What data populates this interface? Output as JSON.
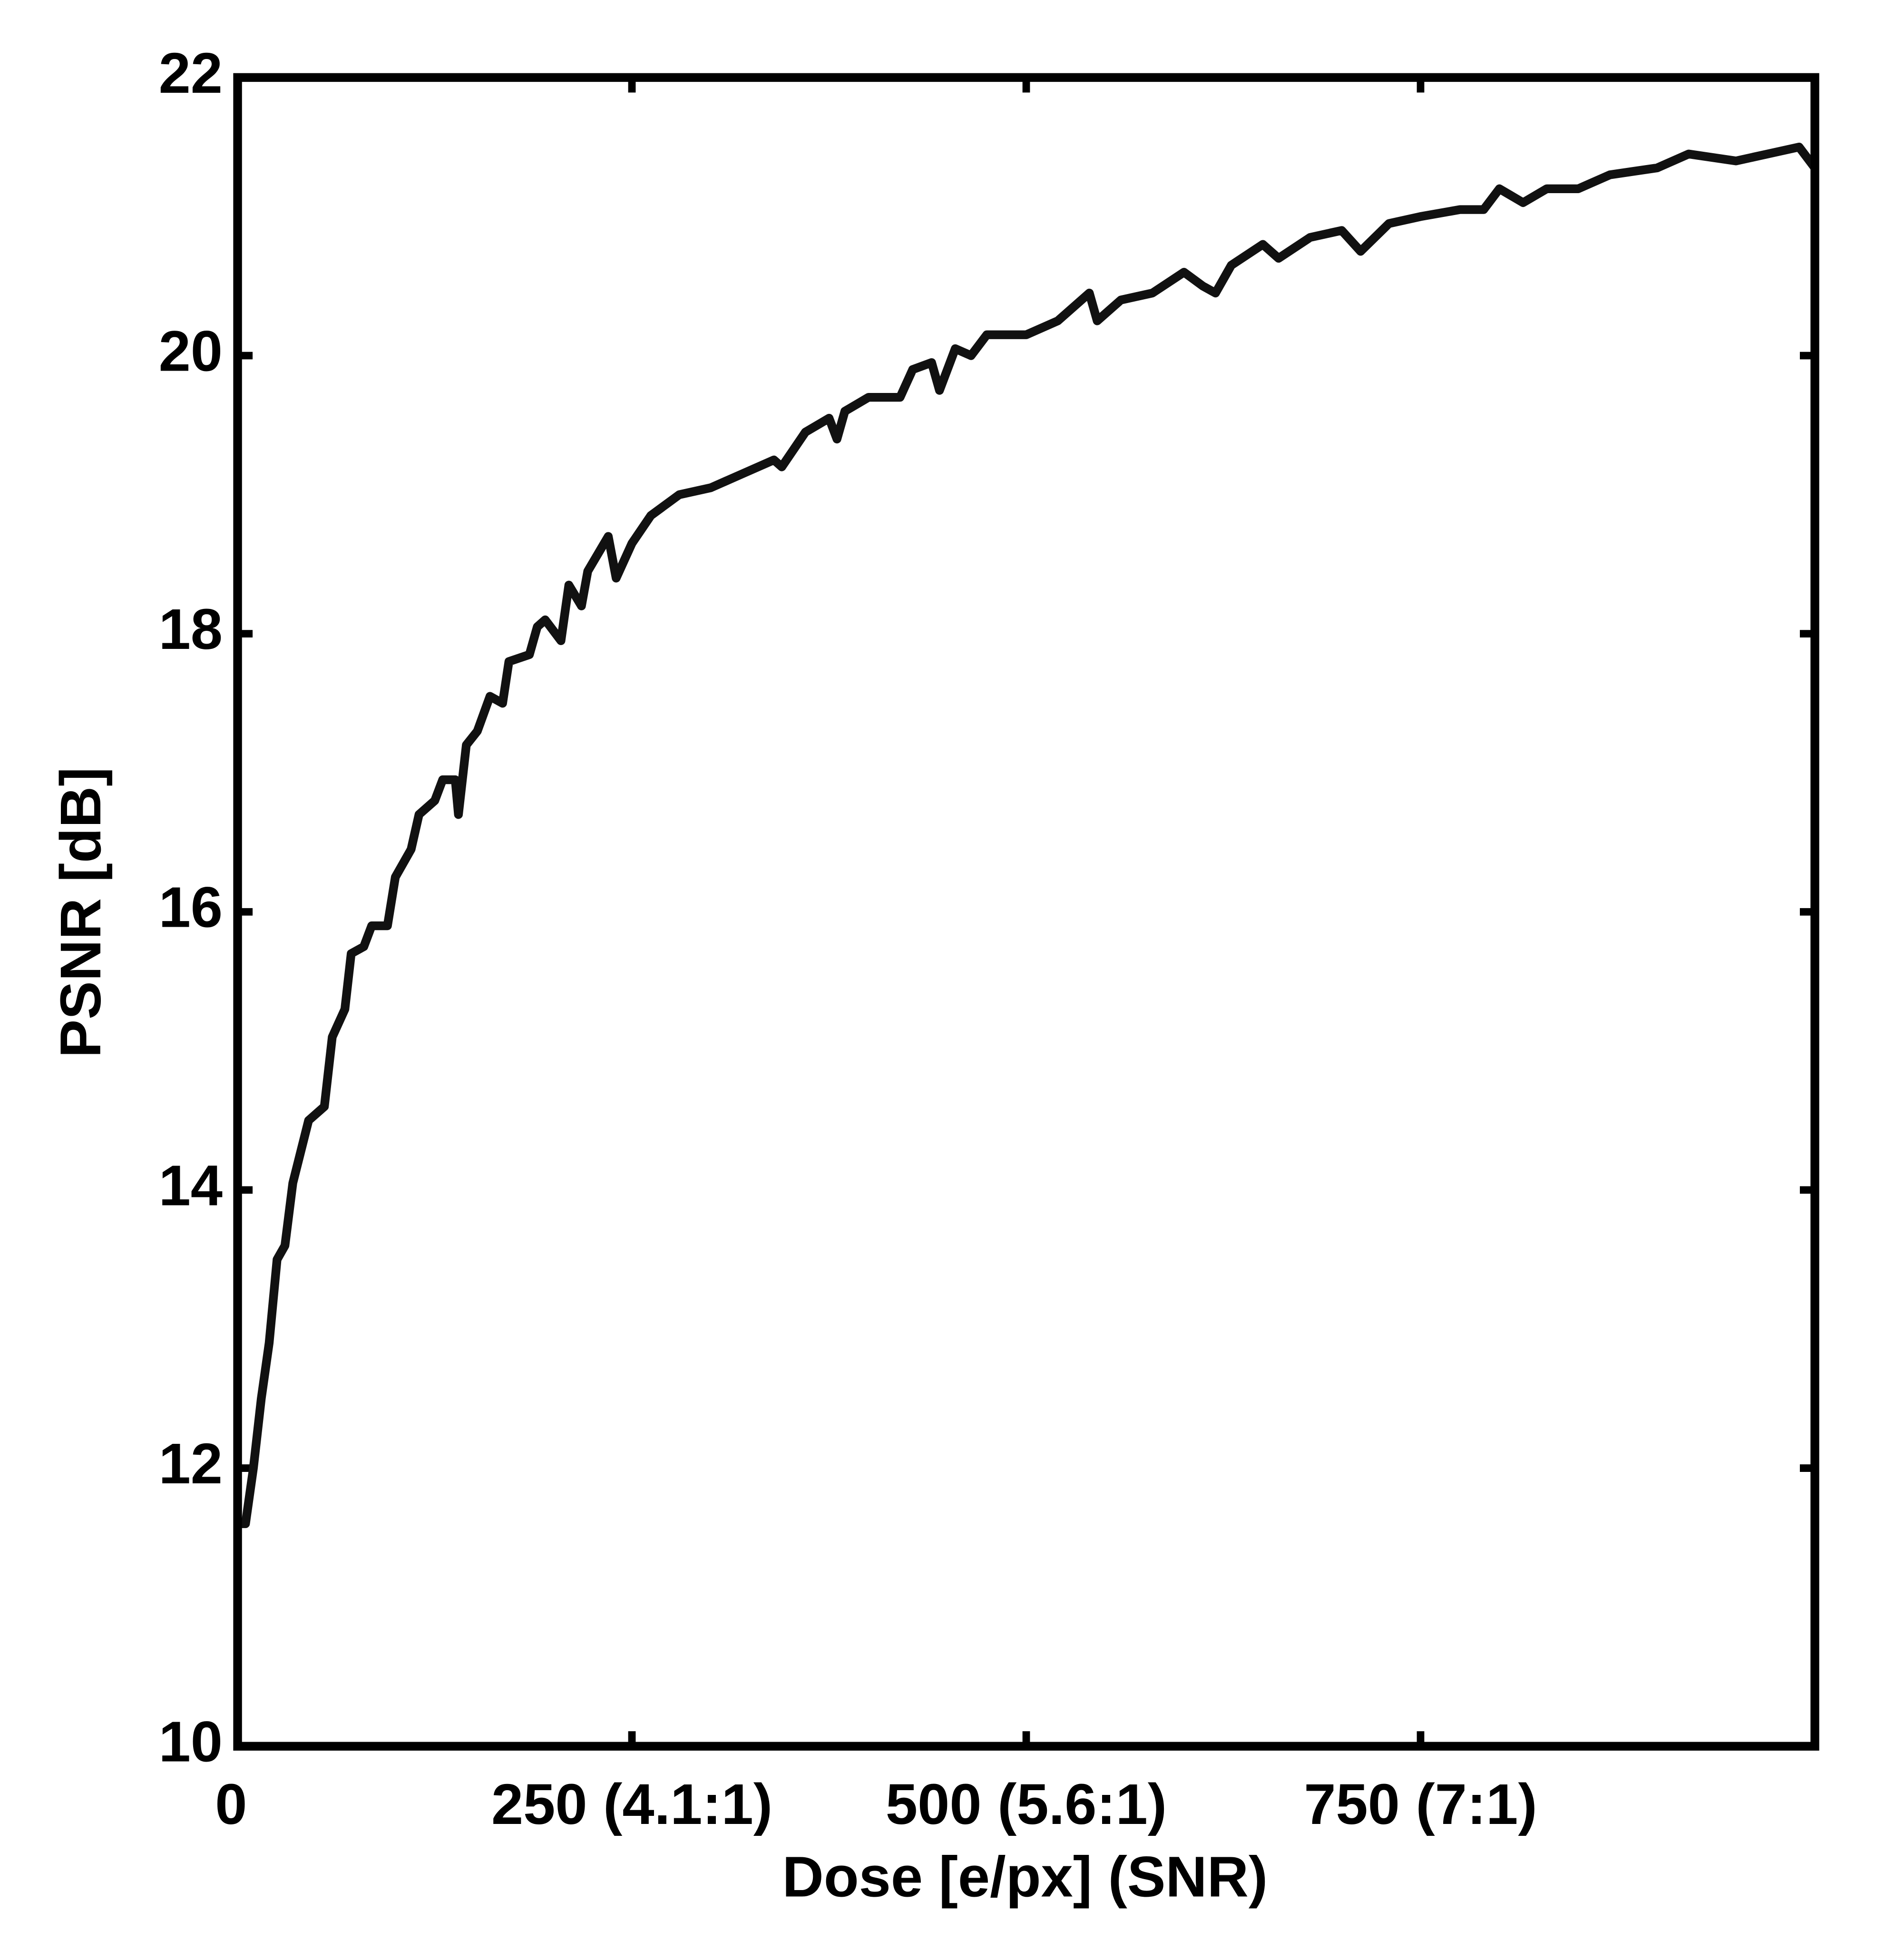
{
  "chart_data": {
    "type": "line",
    "xlabel": "Dose [e/px] (SNR)",
    "ylabel": "PSNR [dB]",
    "xlim": [
      0,
      1000
    ],
    "ylim": [
      10,
      22
    ],
    "xticks": [
      0,
      {
        "value": 250,
        "label": "250 (4.1:1)"
      },
      {
        "value": 500,
        "label": "500 (5.6:1)"
      },
      {
        "value": 750,
        "label": "750 (7:1)"
      }
    ],
    "yticks": [
      10,
      12,
      14,
      16,
      18,
      20,
      22
    ],
    "grid": false,
    "series": [
      {
        "color": "#111111",
        "x": [
          0,
          5,
          10,
          15,
          20,
          25,
          30,
          35,
          45,
          55,
          60,
          68,
          72,
          80,
          85,
          95,
          100,
          110,
          115,
          125,
          130,
          138,
          140,
          145,
          152,
          160,
          168,
          172,
          185,
          190,
          195,
          205,
          210,
          218,
          222,
          235,
          240,
          250,
          262,
          280,
          300,
          320,
          340,
          345,
          360,
          375,
          380,
          385,
          400,
          420,
          428,
          440,
          445,
          455,
          465,
          475,
          500,
          520,
          540,
          545,
          560,
          580,
          600,
          612,
          620,
          630,
          650,
          660,
          680,
          700,
          712,
          730,
          750,
          775,
          790,
          800,
          815,
          830,
          850,
          870,
          900,
          920,
          950,
          970,
          990,
          1000
        ],
        "values": [
          11.6,
          11.6,
          12.0,
          12.5,
          12.9,
          13.5,
          13.6,
          14.05,
          14.5,
          14.6,
          15.1,
          15.3,
          15.7,
          15.75,
          15.9,
          15.9,
          16.25,
          16.45,
          16.7,
          16.8,
          16.95,
          16.95,
          16.7,
          17.2,
          17.3,
          17.55,
          17.5,
          17.8,
          17.85,
          18.05,
          18.1,
          17.95,
          18.35,
          18.2,
          18.45,
          18.7,
          18.4,
          18.65,
          18.85,
          19.0,
          19.05,
          19.15,
          19.25,
          19.2,
          19.45,
          19.55,
          19.4,
          19.6,
          19.7,
          19.7,
          19.9,
          19.95,
          19.75,
          20.05,
          20.0,
          20.15,
          20.15,
          20.25,
          20.45,
          20.25,
          20.4,
          20.45,
          20.6,
          20.5,
          20.45,
          20.65,
          20.8,
          20.7,
          20.85,
          20.9,
          20.75,
          20.95,
          21.0,
          21.05,
          21.05,
          21.2,
          21.1,
          21.2,
          21.2,
          21.3,
          21.35,
          21.45,
          21.4,
          21.45,
          21.5,
          21.35
        ]
      }
    ]
  }
}
